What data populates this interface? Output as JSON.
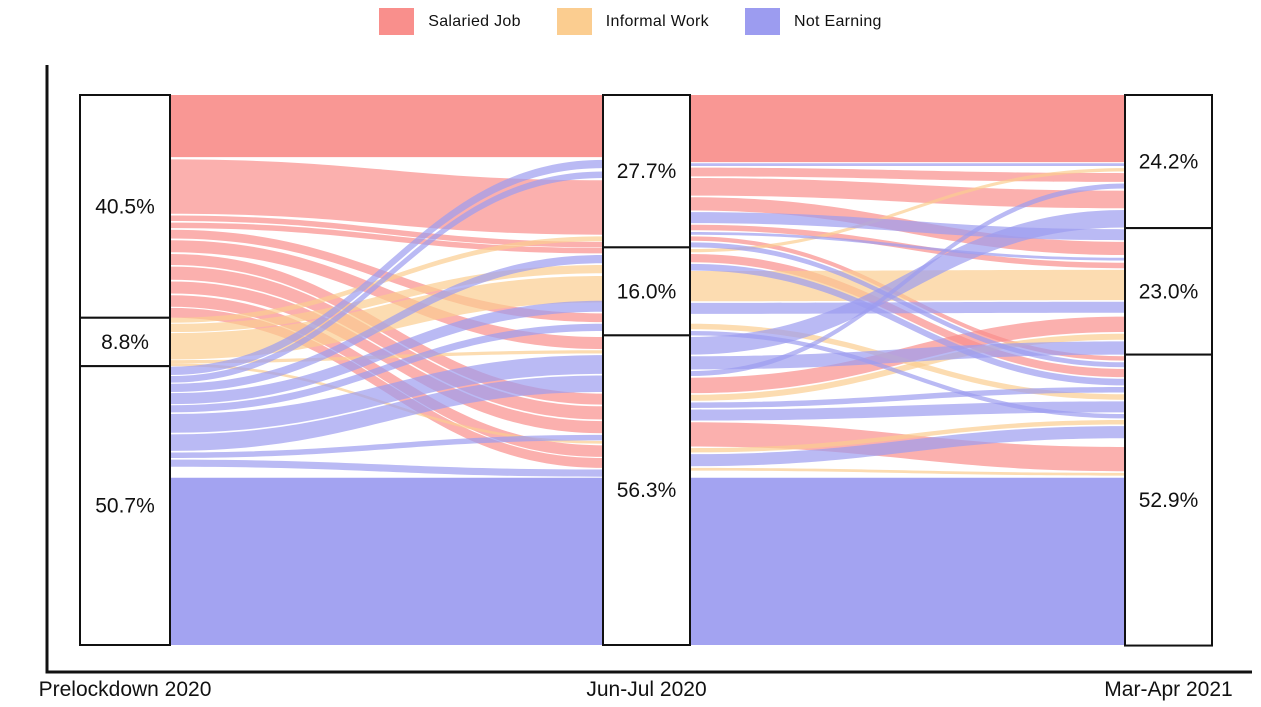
{
  "legend": {
    "items": [
      {
        "label": "Salaried Job",
        "color": "#f98f8c"
      },
      {
        "label": "Informal Work",
        "color": "#fbcd90"
      },
      {
        "label": "Not Earning",
        "color": "#9c9cf0"
      }
    ]
  },
  "chart_data": {
    "type": "sankey-alluvial",
    "title": "",
    "legend_position": "top-center",
    "states": [
      "Salaried Job",
      "Informal Work",
      "Not Earning"
    ],
    "colors": {
      "Salaried Job": "#f98f8c",
      "Informal Work": "#fbcd90",
      "Not Earning": "#9c9cf0"
    },
    "flow_colors": {
      "s": "#f98f8c",
      "i": "#fbcd90",
      "n": "#9c9cf0"
    },
    "axes": [
      {
        "label": "Prelockdown 2020",
        "nodes": [
          {
            "state": "Salaried Job",
            "value": 40.5,
            "label": "40.5%"
          },
          {
            "state": "Informal Work",
            "value": 8.8,
            "label": "8.8%"
          },
          {
            "state": "Not Earning",
            "value": 50.7,
            "label": "50.7%"
          }
        ]
      },
      {
        "label": "Jun-Jul 2020",
        "nodes": [
          {
            "state": "Salaried Job",
            "value": 27.7,
            "label": "27.7%"
          },
          {
            "state": "Informal Work",
            "value": 16.0,
            "label": "16.0%"
          },
          {
            "state": "Not Earning",
            "value": 56.3,
            "label": "56.3%"
          }
        ]
      },
      {
        "label": "Mar-Apr 2021",
        "nodes": [
          {
            "state": "Salaried Job",
            "value": 24.2,
            "label": "24.2%"
          },
          {
            "state": "Informal Work",
            "value": 23.0,
            "label": "23.0%"
          },
          {
            "state": "Not Earning",
            "value": 52.9,
            "label": "52.9%"
          }
        ]
      }
    ],
    "flows": {
      "t1": [
        {
          "c": "s",
          "s": [
            0,
            11.3
          ],
          "t": [
            0,
            11.3
          ],
          "o": 0.93
        },
        {
          "c": "s",
          "s": [
            11.7,
            21.6
          ],
          "t": [
            15.5,
            25.4
          ]
        },
        {
          "c": "s",
          "s": [
            21.9,
            22.9
          ],
          "t": [
            26.7,
            27.7
          ]
        },
        {
          "c": "s",
          "s": [
            23.2,
            24.2
          ],
          "t": [
            27.8,
            28.8
          ]
        },
        {
          "c": "s",
          "s": [
            24.5,
            26.1
          ],
          "t": [
            39.7,
            41.3
          ]
        },
        {
          "c": "s",
          "s": [
            26.4,
            28.6
          ],
          "t": [
            44.0,
            46.2
          ]
        },
        {
          "c": "s",
          "s": [
            28.9,
            30.9
          ],
          "t": [
            54.3,
            56.3
          ]
        },
        {
          "c": "s",
          "s": [
            31.2,
            33.6
          ],
          "t": [
            56.6,
            59.0
          ]
        },
        {
          "c": "s",
          "s": [
            33.9,
            36.1
          ],
          "t": [
            59.3,
            61.5
          ]
        },
        {
          "c": "s",
          "s": [
            36.4,
            38.5
          ],
          "t": [
            63.7,
            65.8
          ]
        },
        {
          "c": "s",
          "s": [
            38.7,
            40.5
          ],
          "t": [
            66.0,
            67.8
          ]
        },
        {
          "c": "i",
          "s": [
            40.5,
            41.4
          ],
          "t": [
            25.7,
            26.6
          ]
        },
        {
          "c": "i",
          "s": [
            41.6,
            43.1
          ],
          "t": [
            30.9,
            32.4
          ]
        },
        {
          "c": "i",
          "s": [
            43.3,
            48.1
          ],
          "t": [
            32.9,
            37.7
          ]
        },
        {
          "c": "i",
          "s": [
            48.2,
            48.8
          ],
          "t": [
            46.4,
            47.0
          ]
        },
        {
          "c": "i",
          "s": [
            48.8,
            49.3
          ],
          "t": [
            62.9,
            63.4
          ]
        },
        {
          "c": "n",
          "s": [
            49.4,
            50.9
          ],
          "t": [
            11.8,
            13.3
          ]
        },
        {
          "c": "n",
          "s": [
            51.1,
            52.3
          ],
          "t": [
            13.9,
            15.1
          ]
        },
        {
          "c": "n",
          "s": [
            52.5,
            54.0
          ],
          "t": [
            29.1,
            30.6
          ]
        },
        {
          "c": "n",
          "s": [
            54.2,
            56.2
          ],
          "t": [
            37.4,
            39.4
          ]
        },
        {
          "c": "n",
          "s": [
            56.4,
            57.7
          ],
          "t": [
            41.6,
            42.9
          ]
        },
        {
          "c": "n",
          "s": [
            58.0,
            61.4
          ],
          "t": [
            47.3,
            50.7
          ]
        },
        {
          "c": "n",
          "s": [
            61.7,
            64.7
          ],
          "t": [
            51.0,
            54.0
          ]
        },
        {
          "c": "n",
          "s": [
            65.0,
            66.0
          ],
          "t": [
            61.8,
            62.8
          ]
        },
        {
          "c": "n",
          "s": [
            66.3,
            67.6
          ],
          "t": [
            68.1,
            69.4
          ]
        },
        {
          "c": "n",
          "s": [
            69.6,
            100
          ],
          "t": [
            69.6,
            100
          ],
          "o": 0.93
        }
      ],
      "t2": [
        {
          "c": "s",
          "s": [
            0,
            12.2
          ],
          "t": [
            0,
            12.2
          ],
          "o": 0.93
        },
        {
          "c": "s",
          "s": [
            13.2,
            14.8
          ],
          "t": [
            14.2,
            15.8
          ]
        },
        {
          "c": "s",
          "s": [
            15.1,
            18.3
          ],
          "t": [
            17.4,
            20.6
          ]
        },
        {
          "c": "s",
          "s": [
            18.6,
            21.0
          ],
          "t": [
            26.7,
            29.1
          ]
        },
        {
          "c": "s",
          "s": [
            23.6,
            24.6
          ],
          "t": [
            30.5,
            31.5
          ]
        },
        {
          "c": "s",
          "s": [
            25.7,
            26.5
          ],
          "t": [
            47.5,
            48.3
          ]
        },
        {
          "c": "s",
          "s": [
            28.9,
            30.4
          ],
          "t": [
            49.8,
            51.3
          ]
        },
        {
          "c": "s",
          "s": [
            51.4,
            54.2
          ],
          "t": [
            40.3,
            43.1
          ]
        },
        {
          "c": "s",
          "s": [
            59.5,
            63.9
          ],
          "t": [
            64.0,
            68.4
          ]
        },
        {
          "c": "i",
          "s": [
            28.0,
            28.6
          ],
          "t": [
            13.3,
            13.9
          ]
        },
        {
          "c": "i",
          "s": [
            32.0,
            37.5
          ],
          "t": [
            31.8,
            37.3
          ]
        },
        {
          "c": "i",
          "s": [
            41.6,
            42.6
          ],
          "t": [
            54.4,
            55.4
          ]
        },
        {
          "c": "i",
          "s": [
            54.5,
            55.6
          ],
          "t": [
            43.4,
            44.5
          ]
        },
        {
          "c": "i",
          "s": [
            64.2,
            65.0
          ],
          "t": [
            59.1,
            59.9
          ]
        },
        {
          "c": "i",
          "s": [
            67.8,
            68.3
          ],
          "t": [
            68.7,
            69.2
          ]
        },
        {
          "c": "n",
          "s": [
            12.4,
            12.9
          ],
          "t": [
            12.4,
            12.9
          ]
        },
        {
          "c": "n",
          "s": [
            21.3,
            23.3
          ],
          "t": [
            24.4,
            26.4
          ]
        },
        {
          "c": "n",
          "s": [
            24.9,
            25.4
          ],
          "t": [
            29.6,
            30.1
          ]
        },
        {
          "c": "n",
          "s": [
            26.8,
            27.7
          ],
          "t": [
            48.6,
            49.5
          ]
        },
        {
          "c": "n",
          "s": [
            30.7,
            31.9
          ],
          "t": [
            51.6,
            52.8
          ]
        },
        {
          "c": "n",
          "s": [
            37.8,
            39.8
          ],
          "t": [
            37.6,
            39.6
          ]
        },
        {
          "c": "n",
          "s": [
            42.9,
            43.7
          ],
          "t": [
            58.0,
            58.8
          ]
        },
        {
          "c": "n",
          "s": [
            44.0,
            47.2
          ],
          "t": [
            20.9,
            24.1
          ]
        },
        {
          "c": "n",
          "s": [
            47.5,
            49.9
          ],
          "t": [
            44.8,
            47.2
          ]
        },
        {
          "c": "n",
          "s": [
            50.2,
            51.1
          ],
          "t": [
            16.1,
            17.0
          ]
        },
        {
          "c": "n",
          "s": [
            55.9,
            56.9
          ],
          "t": [
            53.1,
            54.1
          ]
        },
        {
          "c": "n",
          "s": [
            57.2,
            59.2
          ],
          "t": [
            55.7,
            57.7
          ]
        },
        {
          "c": "n",
          "s": [
            65.3,
            67.5
          ],
          "t": [
            60.2,
            62.4
          ]
        },
        {
          "c": "n",
          "s": [
            69.6,
            100
          ],
          "t": [
            69.6,
            100
          ],
          "o": 0.93
        }
      ]
    }
  }
}
